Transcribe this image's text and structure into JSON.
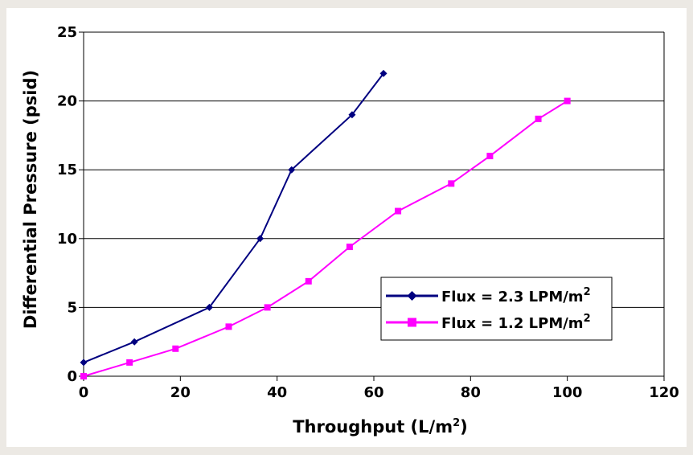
{
  "chart_data": {
    "type": "line",
    "title": "",
    "xlabel": "Throughput (L/m",
    "xlabel_sup": "2",
    "xlabel_suffix": ")",
    "ylabel": "Differential Pressure (psid)",
    "xlim": [
      0,
      120
    ],
    "ylim": [
      0,
      25
    ],
    "x_ticks": [
      "0",
      "20",
      "40",
      "60",
      "80",
      "100",
      "120"
    ],
    "y_ticks": [
      "0",
      "5",
      "10",
      "15",
      "20",
      "25"
    ],
    "grid": "horizontal",
    "legend_position": "lower-right",
    "series": [
      {
        "name": "Flux = 2.3 LPM/m",
        "name_sup": "2",
        "color": "#000080",
        "marker": "diamond",
        "x": [
          0,
          10.5,
          26,
          36.5,
          43,
          55.5,
          62
        ],
        "y": [
          1,
          2.5,
          5,
          10,
          15,
          19,
          22
        ]
      },
      {
        "name": "Flux = 1.2 LPM/m",
        "name_sup": "2",
        "color": "#ff00ff",
        "marker": "square",
        "x": [
          0,
          9.5,
          19,
          30,
          38,
          46.5,
          55,
          65,
          76,
          84,
          94,
          100
        ],
        "y": [
          0,
          1,
          2,
          3.6,
          5,
          6.9,
          9.4,
          12,
          14,
          16,
          18.7,
          20
        ]
      }
    ]
  }
}
